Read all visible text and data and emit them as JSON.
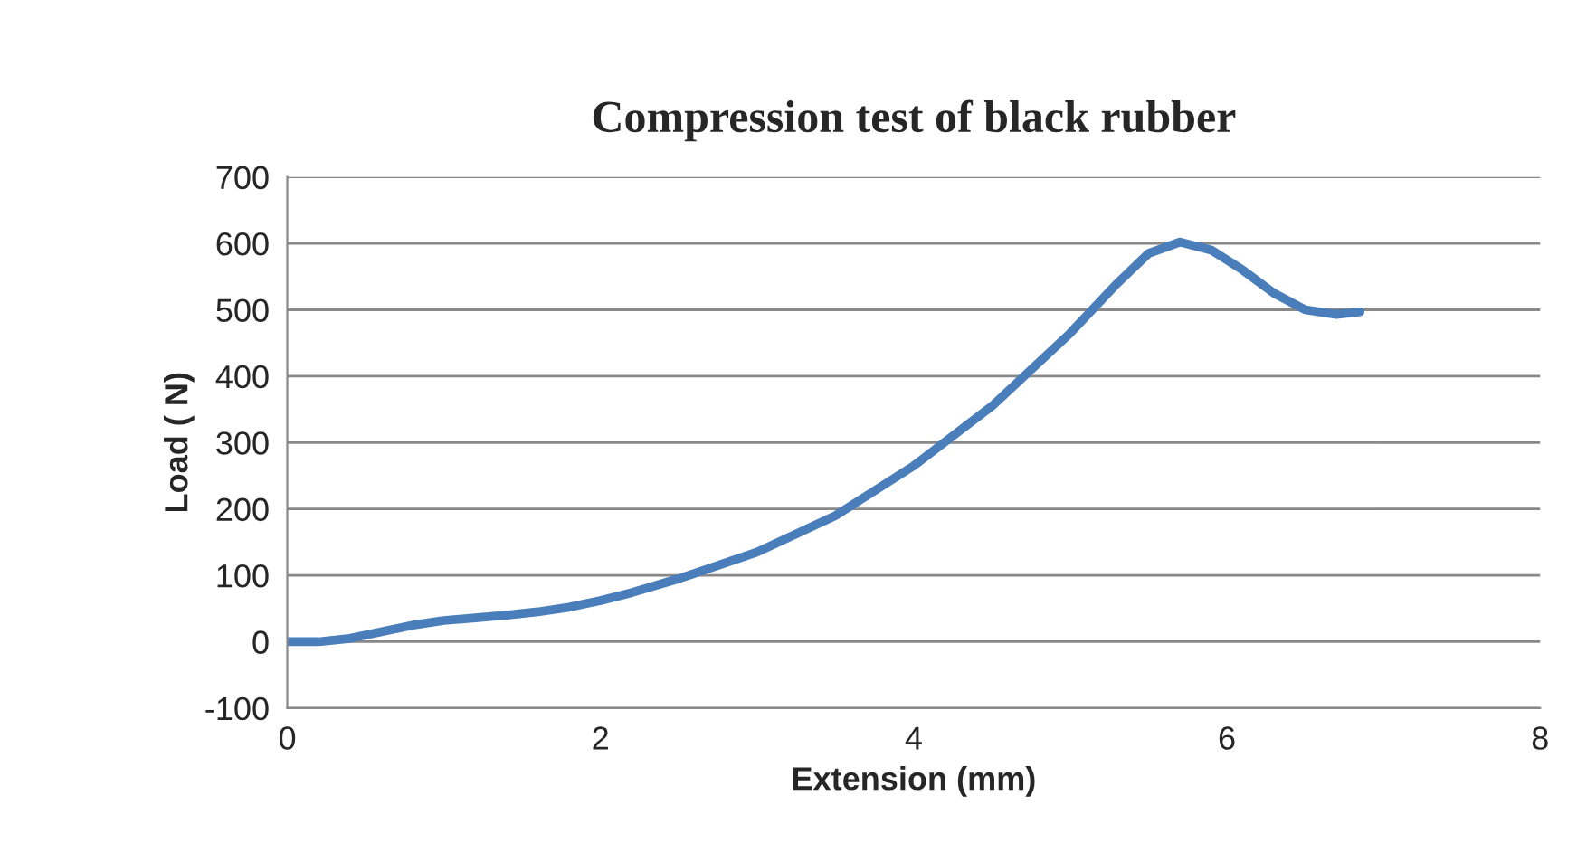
{
  "chart_data": {
    "type": "line",
    "title": "Compression test of black rubber",
    "xlabel": "Extension (mm)",
    "ylabel": "Load ( N)",
    "series": [
      {
        "color": "#4a7ebb",
        "x": [
          0,
          0.2,
          0.4,
          0.6,
          0.8,
          1.0,
          1.2,
          1.4,
          1.6,
          1.8,
          2.0,
          2.2,
          2.5,
          3.0,
          3.5,
          4.0,
          4.5,
          5.0,
          5.3,
          5.5,
          5.7,
          5.9,
          6.1,
          6.3,
          6.5,
          6.7,
          6.85
        ],
        "values": [
          0,
          0,
          5,
          15,
          25,
          32,
          36,
          40,
          45,
          52,
          62,
          74,
          95,
          135,
          190,
          265,
          355,
          465,
          540,
          585,
          602,
          590,
          560,
          525,
          500,
          493,
          497
        ]
      }
    ],
    "xlim": [
      0,
      8
    ],
    "xticks": [
      0,
      2,
      4,
      6,
      8
    ],
    "ylim": [
      -100,
      700
    ],
    "yticks": [
      -100,
      0,
      100,
      200,
      300,
      400,
      500,
      600,
      700
    ],
    "grid": "y",
    "legend": false,
    "marker": "none",
    "line_style": "solid"
  }
}
